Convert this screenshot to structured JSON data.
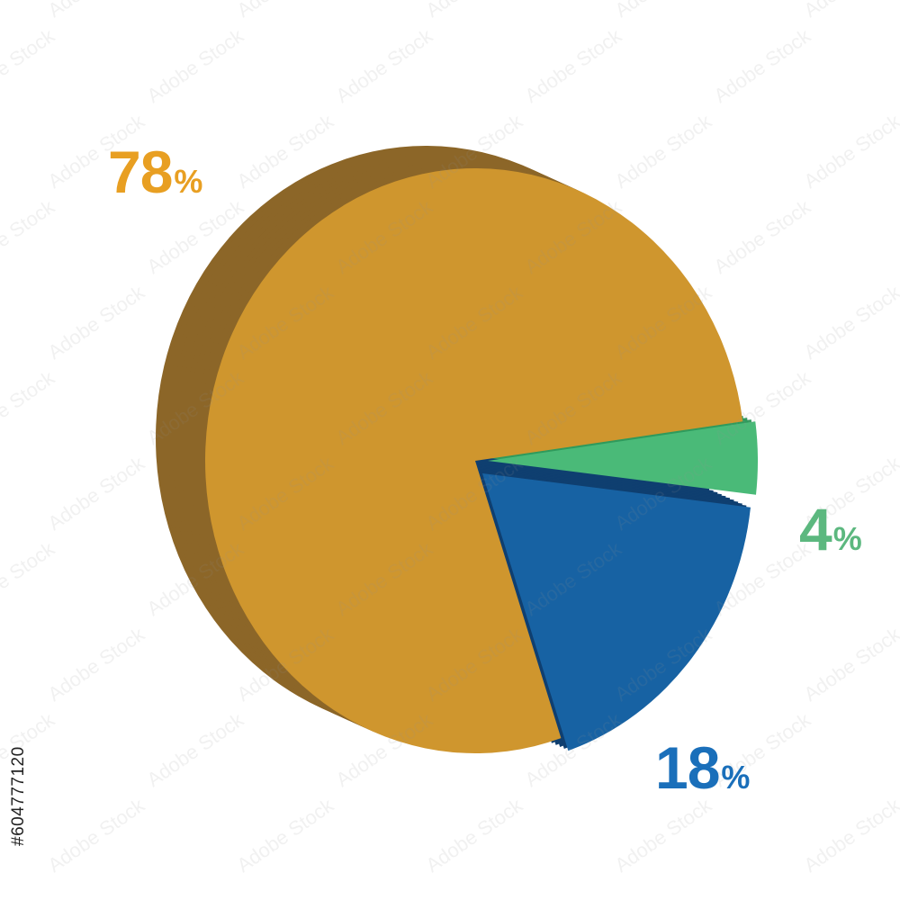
{
  "chart_data": {
    "type": "pie",
    "style": "3d",
    "slices": [
      {
        "label": "78%",
        "value": 78,
        "color": "#cf962e",
        "side_color": "#8c6628"
      },
      {
        "label": "18%",
        "value": 18,
        "color": "#1762a3",
        "side_color": "#0f3f70",
        "exploded": true
      },
      {
        "label": "4%",
        "value": 4,
        "color": "#4aba78",
        "side_color": "#2f9a5c",
        "exploded": true
      }
    ],
    "label_colors": [
      "#e89f22",
      "#1a6fba",
      "#5cb87f"
    ]
  },
  "watermark": {
    "text": "Adobe Stock",
    "side_id": "#604777120"
  }
}
